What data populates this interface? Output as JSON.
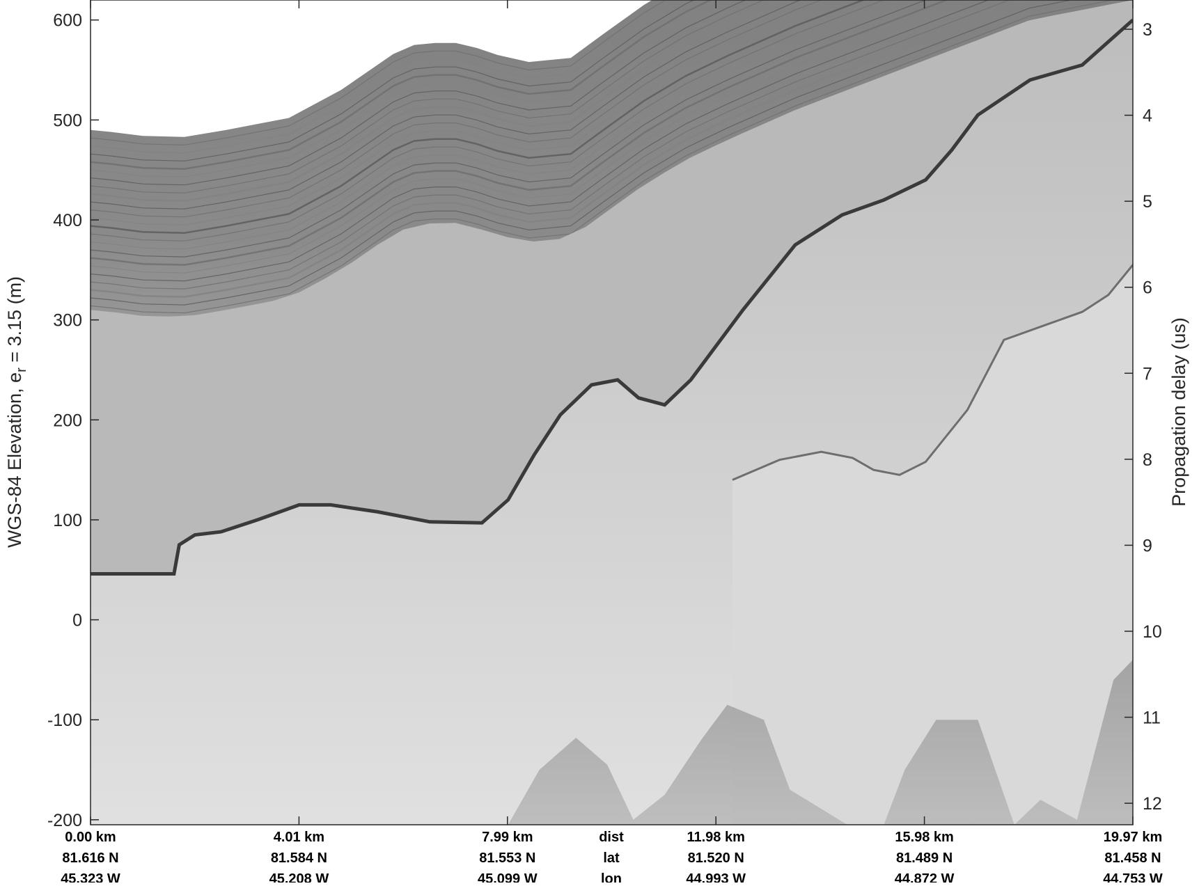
{
  "chart_data": {
    "type": "heatmap",
    "description_type": "radar echogram",
    "ylabel_left": {
      "main": "WGS-84 Elevation, e",
      "subscript": "r",
      "suffix": " = 3.15 (m)"
    },
    "ylabel_right": "Propagation delay (us)",
    "ylim": [
      -205,
      620
    ],
    "yticks_left": [
      -200,
      -100,
      0,
      100,
      200,
      300,
      400,
      500,
      600
    ],
    "right_ylim_us": [
      2.66,
      12.25
    ],
    "yticks_right": [
      3,
      4,
      5,
      6,
      7,
      8,
      9,
      10,
      11,
      12
    ],
    "xlim_km": [
      0.0,
      19.97
    ],
    "colormap": "gray",
    "bottom_axis": {
      "row_labels": [
        "dist",
        "lat",
        "lon"
      ],
      "ticks": [
        {
          "dist": "0.00 km",
          "lat": "81.616 N",
          "lon": "45.323 W"
        },
        {
          "dist": "4.01 km",
          "lat": "81.584 N",
          "lon": "45.208 W"
        },
        {
          "dist": "7.99 km",
          "lat": "81.553 N",
          "lon": "45.099 W"
        },
        {
          "dist": "11.98 km",
          "lat": "81.520 N",
          "lon": "44.993 W"
        },
        {
          "dist": "15.98 km",
          "lat": "81.489 N",
          "lon": "44.872 W"
        },
        {
          "dist": "19.97 km",
          "lat": "81.458 N",
          "lon": "44.753 W"
        }
      ]
    },
    "surface_elevation": {
      "x_km": [
        0.0,
        0.4,
        1.0,
        1.8,
        2.6,
        3.8,
        4.8,
        5.8,
        6.2,
        6.6,
        7.0,
        7.4,
        7.8,
        8.4,
        9.2,
        9.8,
        10.6,
        11.4,
        12.2,
        13.5,
        15.0,
        16.5,
        18.0,
        19.97
      ],
      "y_m": [
        490,
        488,
        484,
        483,
        490,
        502,
        530,
        566,
        575,
        577,
        577,
        572,
        565,
        558,
        562,
        585,
        615,
        640,
        660,
        690,
        720,
        750,
        780,
        800
      ]
    },
    "bed_elevation": {
      "x_km": [
        0.0,
        1.6,
        1.7,
        2.0,
        2.5,
        3.2,
        4.0,
        4.6,
        5.5,
        6.5,
        7.5,
        8.0,
        8.5,
        9.0,
        9.6,
        10.1,
        10.5,
        11.0,
        11.5,
        12.5,
        13.5,
        14.4,
        15.2,
        16.0,
        16.5,
        17.0,
        18.0,
        19.0,
        19.97
      ],
      "y_m": [
        46,
        46,
        75,
        85,
        88,
        100,
        115,
        115,
        108,
        98,
        97,
        120,
        165,
        205,
        235,
        240,
        222,
        215,
        240,
        310,
        375,
        405,
        420,
        440,
        470,
        505,
        540,
        555,
        600
      ]
    },
    "internal_layer": {
      "x_km": [
        12.3,
        13.2,
        14.0,
        14.6,
        15.0,
        15.5,
        16.0,
        16.8,
        17.5,
        18.3,
        19.0,
        19.5,
        19.97
      ],
      "y_m": [
        140,
        160,
        168,
        162,
        150,
        145,
        158,
        210,
        280,
        295,
        308,
        325,
        355
      ]
    },
    "deep_layer_tops": {
      "x_km": [
        8.0,
        8.6,
        9.3,
        9.9,
        10.4,
        11.0,
        11.7,
        12.2,
        12.9,
        13.4,
        14.5,
        15.2,
        15.6,
        16.2,
        17.0,
        17.7,
        18.2,
        18.9,
        19.6,
        19.97
      ],
      "y_m": [
        -205,
        -150,
        -118,
        -145,
        -200,
        -175,
        -120,
        -85,
        -100,
        -170,
        -205,
        -205,
        -150,
        -100,
        -100,
        -205,
        -180,
        -200,
        -60,
        -40
      ]
    }
  }
}
